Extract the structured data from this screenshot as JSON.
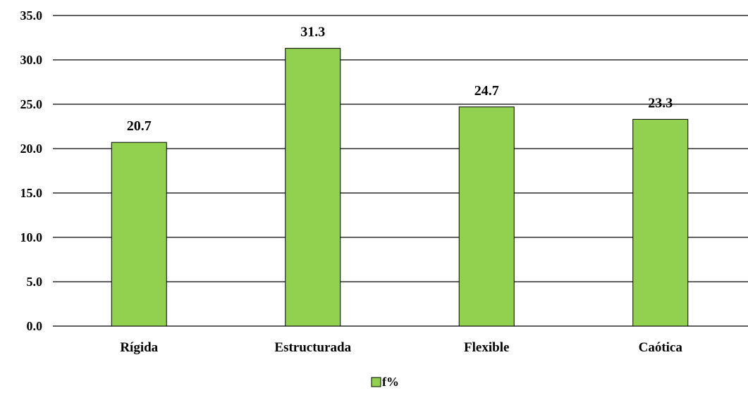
{
  "chart_data": {
    "type": "bar",
    "title": "",
    "xlabel": "",
    "ylabel": "",
    "categories": [
      "Rígida",
      "Estructurada",
      "Flexible",
      "Caótica"
    ],
    "series": [
      {
        "name": "f%",
        "values": [
          20.7,
          31.3,
          24.7,
          23.3
        ],
        "color": "#92d050"
      }
    ],
    "data_labels": [
      "20.7",
      "31.3",
      "24.7",
      "23.3"
    ],
    "ylim": [
      0,
      35
    ],
    "yticks": [
      "0.0",
      "5.0",
      "10.0",
      "15.0",
      "20.0",
      "25.0",
      "30.0",
      "35.0"
    ],
    "ytick_values": [
      0,
      5,
      10,
      15,
      20,
      25,
      30,
      35
    ],
    "grid": true,
    "legend": {
      "placement": "bottom-center",
      "entries": [
        "f%"
      ]
    }
  }
}
